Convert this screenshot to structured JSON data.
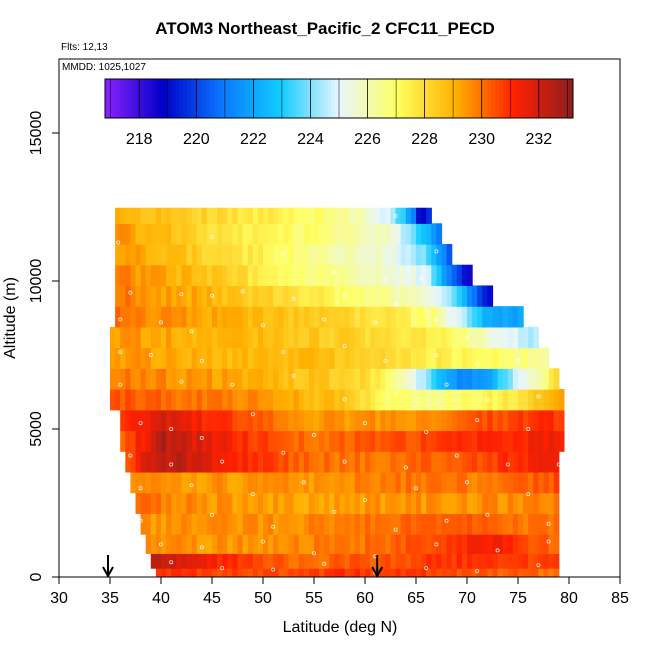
{
  "chart_data": {
    "type": "heatmap",
    "title": "ATOM3 Northeast_Pacific_2 CFC11_PECD",
    "subtitle_flights": "Flts: 12,13",
    "subtitle_dates": "MMDD: 1025,1027",
    "xlabel": "Latitude (deg N)",
    "ylabel": "Altitude (m)",
    "xlim": [
      30,
      85
    ],
    "ylim": [
      0,
      17500
    ],
    "x_ticks": [
      "30",
      "35",
      "40",
      "45",
      "50",
      "55",
      "60",
      "65",
      "70",
      "75",
      "80",
      "85"
    ],
    "y_ticks": [
      "0",
      "5000",
      "10000",
      "15000"
    ],
    "colorbar": {
      "range": [
        216.8,
        233.2
      ],
      "ticks": [
        "218",
        "220",
        "222",
        "224",
        "226",
        "228",
        "230",
        "232"
      ],
      "colors": [
        "#8b22ff",
        "#0000c8",
        "#0a78ff",
        "#12ccff",
        "#e8f6ff",
        "#ffff60",
        "#ffb000",
        "#ff2000",
        "#8b1e1e"
      ]
    },
    "arrows_latitude": [
      34.8,
      61.2
    ],
    "layers": [
      {
        "alt": 12300,
        "lat_min": 35.5,
        "lat_max": 66.5,
        "values": [
          [
            35.5,
            229
          ],
          [
            50,
            227.5
          ],
          [
            58,
            226.5
          ],
          [
            62,
            225
          ],
          [
            64.5,
            222
          ],
          [
            65.5,
            218
          ],
          [
            66.5,
            220
          ]
        ]
      },
      {
        "alt": 11600,
        "lat_min": 35.5,
        "lat_max": 67.5,
        "values": [
          [
            35.5,
            229.5
          ],
          [
            48,
            227.5
          ],
          [
            58,
            226.5
          ],
          [
            63,
            225.5
          ],
          [
            65.5,
            223
          ],
          [
            67.5,
            221
          ]
        ]
      },
      {
        "alt": 10900,
        "lat_min": 35.5,
        "lat_max": 68.5,
        "values": [
          [
            35.5,
            229.5
          ],
          [
            46,
            228
          ],
          [
            55,
            226.5
          ],
          [
            62,
            225.5
          ],
          [
            66,
            224
          ],
          [
            68.5,
            220
          ]
        ]
      },
      {
        "alt": 10200,
        "lat_min": 35.5,
        "lat_max": 70.5,
        "values": [
          [
            35.5,
            229.8
          ],
          [
            45,
            228.5
          ],
          [
            53,
            227
          ],
          [
            60,
            226
          ],
          [
            66,
            225
          ],
          [
            69,
            220
          ],
          [
            70.5,
            218
          ]
        ]
      },
      {
        "alt": 9500,
        "lat_min": 35.5,
        "lat_max": 72.5,
        "values": [
          [
            35.5,
            230
          ],
          [
            44,
            229
          ],
          [
            52,
            228
          ],
          [
            58,
            227
          ],
          [
            64,
            226
          ],
          [
            68,
            224.5
          ],
          [
            71,
            220.5
          ],
          [
            72.5,
            219
          ]
        ]
      },
      {
        "alt": 8800,
        "lat_min": 35.5,
        "lat_max": 75.5,
        "values": [
          [
            35.5,
            230
          ],
          [
            45,
            229.2
          ],
          [
            55,
            228.4
          ],
          [
            62,
            227.8
          ],
          [
            67,
            226.5
          ],
          [
            70,
            224
          ],
          [
            72,
            222
          ],
          [
            75.5,
            222
          ]
        ]
      },
      {
        "alt": 8100,
        "lat_min": 35.0,
        "lat_max": 77.0,
        "values": [
          [
            35,
            229.5
          ],
          [
            45,
            229
          ],
          [
            55,
            228.5
          ],
          [
            62,
            228
          ],
          [
            67,
            227.5
          ],
          [
            70,
            226.5
          ],
          [
            74,
            225
          ],
          [
            77,
            224.5
          ]
        ]
      },
      {
        "alt": 7400,
        "lat_min": 35.0,
        "lat_max": 78.0,
        "values": [
          [
            35,
            229.5
          ],
          [
            45,
            229
          ],
          [
            55,
            228.8
          ],
          [
            62,
            228
          ],
          [
            67,
            227.5
          ],
          [
            72,
            227
          ],
          [
            78,
            226.5
          ]
        ]
      },
      {
        "alt": 6700,
        "lat_min": 35.0,
        "lat_max": 79.0,
        "values": [
          [
            35,
            230
          ],
          [
            50,
            229
          ],
          [
            60,
            228
          ],
          [
            64,
            226
          ],
          [
            67,
            223
          ],
          [
            70,
            221
          ],
          [
            72,
            222
          ],
          [
            74,
            224
          ],
          [
            77,
            226
          ],
          [
            79,
            228
          ]
        ]
      },
      {
        "alt": 6000,
        "lat_min": 35.0,
        "lat_max": 79.5,
        "values": [
          [
            35,
            230.5
          ],
          [
            50,
            229.5
          ],
          [
            58,
            228.5
          ],
          [
            62,
            227
          ],
          [
            66,
            226.5
          ],
          [
            70,
            227
          ],
          [
            74,
            227.5
          ],
          [
            79.5,
            229.5
          ]
        ]
      },
      {
        "alt": 5300,
        "lat_min": 36.0,
        "lat_max": 79.5,
        "values": [
          [
            36,
            231
          ],
          [
            40,
            232
          ],
          [
            45,
            231
          ],
          [
            55,
            229.5
          ],
          [
            65,
            229.5
          ],
          [
            72,
            230.5
          ],
          [
            79.5,
            231
          ]
        ]
      },
      {
        "alt": 4600,
        "lat_min": 36.0,
        "lat_max": 79.5,
        "values": [
          [
            36,
            230
          ],
          [
            40,
            232.5
          ],
          [
            45,
            231.5
          ],
          [
            55,
            230
          ],
          [
            65,
            230.5
          ],
          [
            72,
            231
          ],
          [
            79.5,
            231.5
          ]
        ]
      },
      {
        "alt": 3900,
        "lat_min": 36.5,
        "lat_max": 79.0,
        "values": [
          [
            36.5,
            230.5
          ],
          [
            40,
            232.5
          ],
          [
            46,
            231.5
          ],
          [
            55,
            230
          ],
          [
            63,
            230
          ],
          [
            70,
            230.5
          ],
          [
            79,
            231.5
          ]
        ]
      },
      {
        "alt": 3200,
        "lat_min": 37.0,
        "lat_max": 79.0,
        "values": [
          [
            37,
            229.5
          ],
          [
            44,
            229.5
          ],
          [
            55,
            229.5
          ],
          [
            65,
            230
          ],
          [
            72,
            229.8
          ],
          [
            79,
            230.5
          ]
        ]
      },
      {
        "alt": 2500,
        "lat_min": 37.5,
        "lat_max": 79.0,
        "values": [
          [
            37.5,
            230
          ],
          [
            45,
            229.5
          ],
          [
            55,
            229.2
          ],
          [
            62,
            229.5
          ],
          [
            70,
            229.5
          ],
          [
            79,
            229.8
          ]
        ]
      },
      {
        "alt": 1800,
        "lat_min": 38.0,
        "lat_max": 79.0,
        "values": [
          [
            38,
            229.5
          ],
          [
            50,
            229.5
          ],
          [
            62,
            230
          ],
          [
            70,
            230.5
          ],
          [
            75,
            230
          ],
          [
            79,
            230
          ]
        ]
      },
      {
        "alt": 1100,
        "lat_min": 38.5,
        "lat_max": 79.0,
        "values": [
          [
            38.5,
            229.5
          ],
          [
            50,
            229.5
          ],
          [
            60,
            230
          ],
          [
            67,
            230.5
          ],
          [
            72,
            231.5
          ],
          [
            79,
            230
          ]
        ]
      },
      {
        "alt": 500,
        "lat_min": 39.0,
        "lat_max": 79.0,
        "values": [
          [
            39,
            232.5
          ],
          [
            42,
            232
          ],
          [
            46,
            231
          ],
          [
            55,
            230
          ],
          [
            62,
            230.5
          ],
          [
            70,
            231
          ],
          [
            79,
            230.5
          ]
        ]
      },
      {
        "alt": 100,
        "lat_min": 39.5,
        "lat_max": 79.0,
        "values": [
          [
            39.5,
            231
          ],
          [
            50,
            230.5
          ],
          [
            60,
            231
          ],
          [
            70,
            230.5
          ],
          [
            79,
            230
          ]
        ]
      }
    ],
    "sample_points": [
      [
        35.8,
        11300
      ],
      [
        45,
        11500
      ],
      [
        52,
        10900
      ],
      [
        57,
        10300
      ],
      [
        62,
        10050
      ],
      [
        65.5,
        10100
      ],
      [
        67,
        11000
      ],
      [
        63,
        12200
      ],
      [
        37,
        9600
      ],
      [
        42,
        9550
      ],
      [
        45,
        9500
      ],
      [
        48,
        9650
      ],
      [
        53,
        9400
      ],
      [
        58,
        9500
      ],
      [
        63,
        9200
      ],
      [
        66,
        9000
      ],
      [
        36,
        8700
      ],
      [
        40,
        8600
      ],
      [
        43,
        8300
      ],
      [
        50,
        8500
      ],
      [
        56,
        8700
      ],
      [
        61,
        8600
      ],
      [
        67,
        8700
      ],
      [
        70,
        8100
      ],
      [
        36,
        7600
      ],
      [
        39,
        7500
      ],
      [
        44,
        7300
      ],
      [
        52,
        7600
      ],
      [
        58,
        7800
      ],
      [
        62,
        7300
      ],
      [
        67,
        7500
      ],
      [
        71,
        7200
      ],
      [
        75,
        7300
      ],
      [
        36,
        6500
      ],
      [
        42,
        6600
      ],
      [
        47,
        6500
      ],
      [
        53,
        6800
      ],
      [
        58,
        6000
      ],
      [
        63,
        6200
      ],
      [
        68,
        6500
      ],
      [
        72,
        6000
      ],
      [
        77,
        6100
      ],
      [
        38,
        5200
      ],
      [
        41,
        5000
      ],
      [
        44,
        4700
      ],
      [
        49,
        5500
      ],
      [
        55,
        4800
      ],
      [
        60,
        5200
      ],
      [
        66,
        4900
      ],
      [
        71,
        5300
      ],
      [
        76,
        5000
      ],
      [
        37,
        4100
      ],
      [
        41,
        3800
      ],
      [
        46,
        3900
      ],
      [
        52,
        4200
      ],
      [
        58,
        3900
      ],
      [
        64,
        3700
      ],
      [
        69,
        4100
      ],
      [
        74,
        3800
      ],
      [
        79,
        3800
      ],
      [
        38,
        3000
      ],
      [
        43,
        3100
      ],
      [
        49,
        2800
      ],
      [
        54,
        3200
      ],
      [
        60,
        2600
      ],
      [
        65,
        3000
      ],
      [
        70,
        3200
      ],
      [
        76,
        2800
      ],
      [
        38,
        1900
      ],
      [
        45,
        2100
      ],
      [
        51,
        1700
      ],
      [
        57,
        2200
      ],
      [
        63,
        1600
      ],
      [
        68,
        1900
      ],
      [
        72,
        2100
      ],
      [
        78,
        1800
      ],
      [
        40,
        1100
      ],
      [
        44,
        1000
      ],
      [
        50,
        1200
      ],
      [
        55,
        800
      ],
      [
        61,
        700
      ],
      [
        67,
        1100
      ],
      [
        73,
        900
      ],
      [
        78,
        1200
      ],
      [
        41,
        500
      ],
      [
        46,
        300
      ],
      [
        51,
        250
      ],
      [
        56,
        450
      ],
      [
        61,
        150
      ],
      [
        66,
        300
      ],
      [
        71,
        200
      ],
      [
        77,
        400
      ]
    ]
  }
}
